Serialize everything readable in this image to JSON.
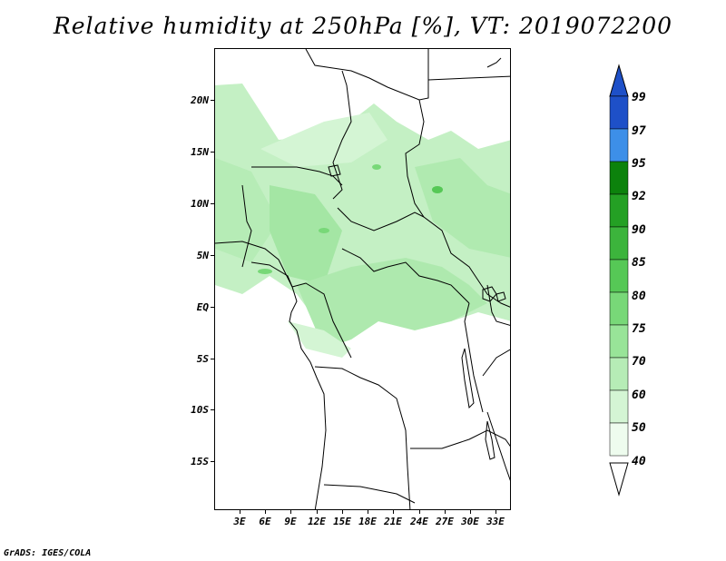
{
  "title": "Relative humidity at 250hPa [%], VT: 2019072200",
  "footer": "GrADS: IGES/COLA",
  "map": {
    "lat_labels": [
      "20N",
      "15N",
      "10N",
      "5N",
      "EQ",
      "5S",
      "10S",
      "15S"
    ],
    "lon_labels": [
      "3E",
      "6E",
      "9E",
      "12E",
      "15E",
      "18E",
      "21E",
      "24E",
      "27E",
      "30E",
      "33E"
    ]
  },
  "colorbar": {
    "labels": [
      "99",
      "97",
      "95",
      "92",
      "90",
      "85",
      "80",
      "75",
      "70",
      "60",
      "50",
      "40"
    ],
    "colors": [
      "#1e50c8",
      "#2a6fdc",
      "#3d8fe8",
      "#0c820c",
      "#24a024",
      "#3cb43c",
      "#56c856",
      "#78d878",
      "#98e498",
      "#b6ecb6",
      "#d4f5d4",
      "#eefcee"
    ]
  }
}
